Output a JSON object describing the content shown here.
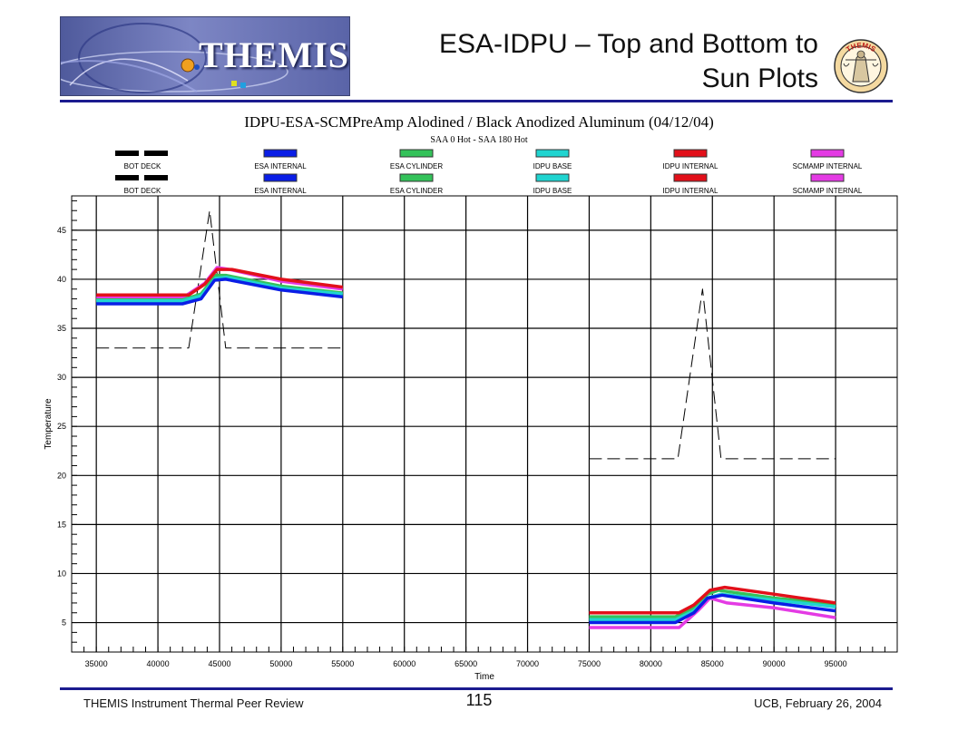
{
  "header": {
    "logo_text": "THEMIS",
    "title_line1": "ESA-IDPU – Top and Bottom to",
    "title_line2": "Sun Plots",
    "seal_text": "THEMIS"
  },
  "footer": {
    "left": "THEMIS Instrument Thermal Peer Review",
    "page": "115",
    "right": "UCB, February 26, 2004"
  },
  "chart_data": {
    "type": "line",
    "title": "IDPU-ESA-SCMPreAmp  Alodined / Black Anodized Aluminum  (04/12/04)",
    "subtitle": "SAA 0 Hot - SAA 180 Hot",
    "xlabel": "Time",
    "ylabel": "Temperature",
    "xlim": [
      33000,
      100000
    ],
    "ylim": [
      2,
      48.5
    ],
    "xticks": [
      35000,
      40000,
      45000,
      50000,
      55000,
      60000,
      65000,
      70000,
      75000,
      80000,
      85000,
      90000,
      95000
    ],
    "yticks": [
      5,
      10,
      15,
      20,
      25,
      30,
      35,
      40,
      45
    ],
    "grid": true,
    "legend": {
      "placement": "top",
      "rows": [
        [
          "BOT DECK",
          "ESA INTERNAL",
          "ESA CYLINDER",
          "IDPU BASE",
          "IDPU INTERNAL",
          "SCMAMP INTERNAL"
        ],
        [
          "BOT DECK",
          "ESA INTERNAL",
          "ESA CYLINDER",
          "IDPU BASE",
          "IDPU INTERNAL",
          "SCMAMP INTERNAL"
        ]
      ],
      "colors": [
        "#000000",
        "#0a1ee6",
        "#34c25a",
        "#20d4d0",
        "#e2101a",
        "#e43be4"
      ],
      "styles": [
        "dash",
        "solid",
        "solid",
        "solid",
        "solid",
        "solid"
      ]
    },
    "series": [
      {
        "color": "#000000",
        "style": "dash",
        "width": 1,
        "segments": [
          [
            [
              35000,
              33
            ],
            [
              42500,
              33
            ],
            [
              44200,
              47
            ],
            [
              45500,
              33
            ],
            [
              55000,
              33
            ]
          ],
          [
            [
              75000,
              21.7
            ],
            [
              82200,
              21.7
            ],
            [
              84200,
              39
            ],
            [
              85700,
              21.7
            ],
            [
              95000,
              21.7
            ]
          ]
        ]
      },
      {
        "color": "#e43be4",
        "style": "solid",
        "width": 3.5,
        "segments": [
          [
            [
              35000,
              38.1
            ],
            [
              42000,
              38.1
            ],
            [
              43800,
              39.6
            ],
            [
              44800,
              41.2
            ],
            [
              45800,
              41
            ],
            [
              50000,
              39.8
            ],
            [
              55000,
              39.0
            ]
          ],
          [
            [
              75000,
              4.5
            ],
            [
              82300,
              4.5
            ],
            [
              83800,
              6.2
            ],
            [
              84800,
              7.5
            ],
            [
              86200,
              7.0
            ],
            [
              90000,
              6.5
            ],
            [
              95000,
              5.5
            ]
          ]
        ]
      },
      {
        "color": "#34c25a",
        "style": "solid",
        "width": 3.5,
        "segments": [
          [
            [
              35000,
              37.9
            ],
            [
              42000,
              37.9
            ],
            [
              43500,
              38.5
            ],
            [
              44700,
              40.4
            ],
            [
              45500,
              40.4
            ],
            [
              50000,
              39.3
            ],
            [
              55000,
              38.6
            ]
          ],
          [
            [
              75000,
              5.6
            ],
            [
              82000,
              5.6
            ],
            [
              83500,
              6.5
            ],
            [
              84600,
              7.9
            ],
            [
              85500,
              8.3
            ],
            [
              90000,
              7.5
            ],
            [
              95000,
              6.9
            ]
          ]
        ]
      },
      {
        "color": "#20d4d0",
        "style": "solid",
        "width": 3.5,
        "segments": [
          [
            [
              35000,
              37.8
            ],
            [
              42000,
              37.8
            ],
            [
              43500,
              38.3
            ],
            [
              44700,
              40.1
            ],
            [
              45600,
              40.2
            ],
            [
              50000,
              39.1
            ],
            [
              55000,
              38.5
            ]
          ],
          [
            [
              75000,
              5.3
            ],
            [
              82000,
              5.3
            ],
            [
              83500,
              6.2
            ],
            [
              84600,
              7.5
            ],
            [
              85700,
              7.9
            ],
            [
              90000,
              7.3
            ],
            [
              95000,
              6.6
            ]
          ]
        ]
      },
      {
        "color": "#0a1ee6",
        "style": "solid",
        "width": 3.5,
        "segments": [
          [
            [
              35000,
              37.5
            ],
            [
              42000,
              37.5
            ],
            [
              43500,
              38.0
            ],
            [
              44600,
              39.9
            ],
            [
              45500,
              40.0
            ],
            [
              50000,
              38.9
            ],
            [
              55000,
              38.2
            ]
          ],
          [
            [
              75000,
              5.0
            ],
            [
              82000,
              5.0
            ],
            [
              83500,
              6.0
            ],
            [
              84600,
              7.5
            ],
            [
              85800,
              7.8
            ],
            [
              90000,
              7.0
            ],
            [
              95000,
              6.2
            ]
          ]
        ]
      },
      {
        "color": "#e2101a",
        "style": "solid",
        "width": 3.5,
        "segments": [
          [
            [
              35000,
              38.4
            ],
            [
              42500,
              38.4
            ],
            [
              43800,
              39.5
            ],
            [
              44800,
              41.0
            ],
            [
              46000,
              41.0
            ],
            [
              50000,
              40.0
            ],
            [
              55000,
              39.2
            ]
          ],
          [
            [
              75000,
              6.0
            ],
            [
              82300,
              6.0
            ],
            [
              83500,
              6.8
            ],
            [
              84800,
              8.3
            ],
            [
              86000,
              8.6
            ],
            [
              90000,
              7.9
            ],
            [
              95000,
              7.0
            ]
          ]
        ]
      }
    ]
  }
}
